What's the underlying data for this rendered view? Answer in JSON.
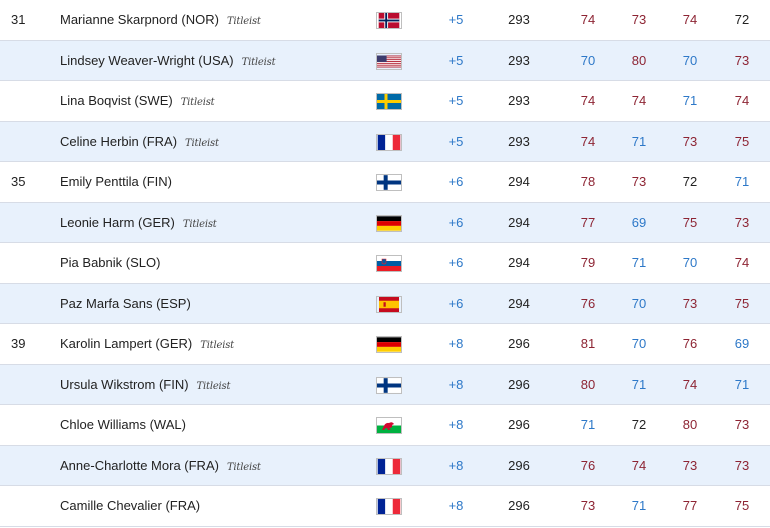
{
  "colors": {
    "under_par": "#2d78c8",
    "over_par": "#8d2433",
    "even_par": "#222222",
    "alt_row": "#e8f1fc"
  },
  "par": 72,
  "rows": [
    {
      "pos": "31",
      "player": "Marianne Skarpnord (NOR)",
      "titleist": "Titleist",
      "flag": "NOR",
      "to_par": "+5",
      "total": "293",
      "rounds": [
        "74",
        "73",
        "74",
        "72"
      ]
    },
    {
      "pos": "",
      "player": "Lindsey Weaver-Wright (USA)",
      "titleist": "Titleist",
      "flag": "USA",
      "to_par": "+5",
      "total": "293",
      "rounds": [
        "70",
        "80",
        "70",
        "73"
      ]
    },
    {
      "pos": "",
      "player": "Lina Boqvist (SWE)",
      "titleist": "Titleist",
      "flag": "SWE",
      "to_par": "+5",
      "total": "293",
      "rounds": [
        "74",
        "74",
        "71",
        "74"
      ]
    },
    {
      "pos": "",
      "player": "Celine Herbin (FRA)",
      "titleist": "Titleist",
      "flag": "FRA",
      "to_par": "+5",
      "total": "293",
      "rounds": [
        "74",
        "71",
        "73",
        "75"
      ]
    },
    {
      "pos": "35",
      "player": "Emily Penttila (FIN)",
      "titleist": "",
      "flag": "FIN",
      "to_par": "+6",
      "total": "294",
      "rounds": [
        "78",
        "73",
        "72",
        "71"
      ]
    },
    {
      "pos": "",
      "player": "Leonie Harm (GER)",
      "titleist": "Titleist",
      "flag": "GER",
      "to_par": "+6",
      "total": "294",
      "rounds": [
        "77",
        "69",
        "75",
        "73"
      ]
    },
    {
      "pos": "",
      "player": "Pia Babnik (SLO)",
      "titleist": "",
      "flag": "SLO",
      "to_par": "+6",
      "total": "294",
      "rounds": [
        "79",
        "71",
        "70",
        "74"
      ]
    },
    {
      "pos": "",
      "player": "Paz Marfa Sans (ESP)",
      "titleist": "",
      "flag": "ESP",
      "to_par": "+6",
      "total": "294",
      "rounds": [
        "76",
        "70",
        "73",
        "75"
      ]
    },
    {
      "pos": "39",
      "player": "Karolin Lampert (GER)",
      "titleist": "Titleist",
      "flag": "GER",
      "to_par": "+8",
      "total": "296",
      "rounds": [
        "81",
        "70",
        "76",
        "69"
      ]
    },
    {
      "pos": "",
      "player": "Ursula Wikstrom (FIN)",
      "titleist": "Titleist",
      "flag": "FIN",
      "to_par": "+8",
      "total": "296",
      "rounds": [
        "80",
        "71",
        "74",
        "71"
      ]
    },
    {
      "pos": "",
      "player": "Chloe Williams (WAL)",
      "titleist": "",
      "flag": "WAL",
      "to_par": "+8",
      "total": "296",
      "rounds": [
        "71",
        "72",
        "80",
        "73"
      ]
    },
    {
      "pos": "",
      "player": "Anne-Charlotte Mora (FRA)",
      "titleist": "Titleist",
      "flag": "FRA",
      "to_par": "+8",
      "total": "296",
      "rounds": [
        "76",
        "74",
        "73",
        "73"
      ]
    },
    {
      "pos": "",
      "player": "Camille Chevalier (FRA)",
      "titleist": "",
      "flag": "FRA",
      "to_par": "+8",
      "total": "296",
      "rounds": [
        "73",
        "71",
        "77",
        "75"
      ]
    }
  ]
}
